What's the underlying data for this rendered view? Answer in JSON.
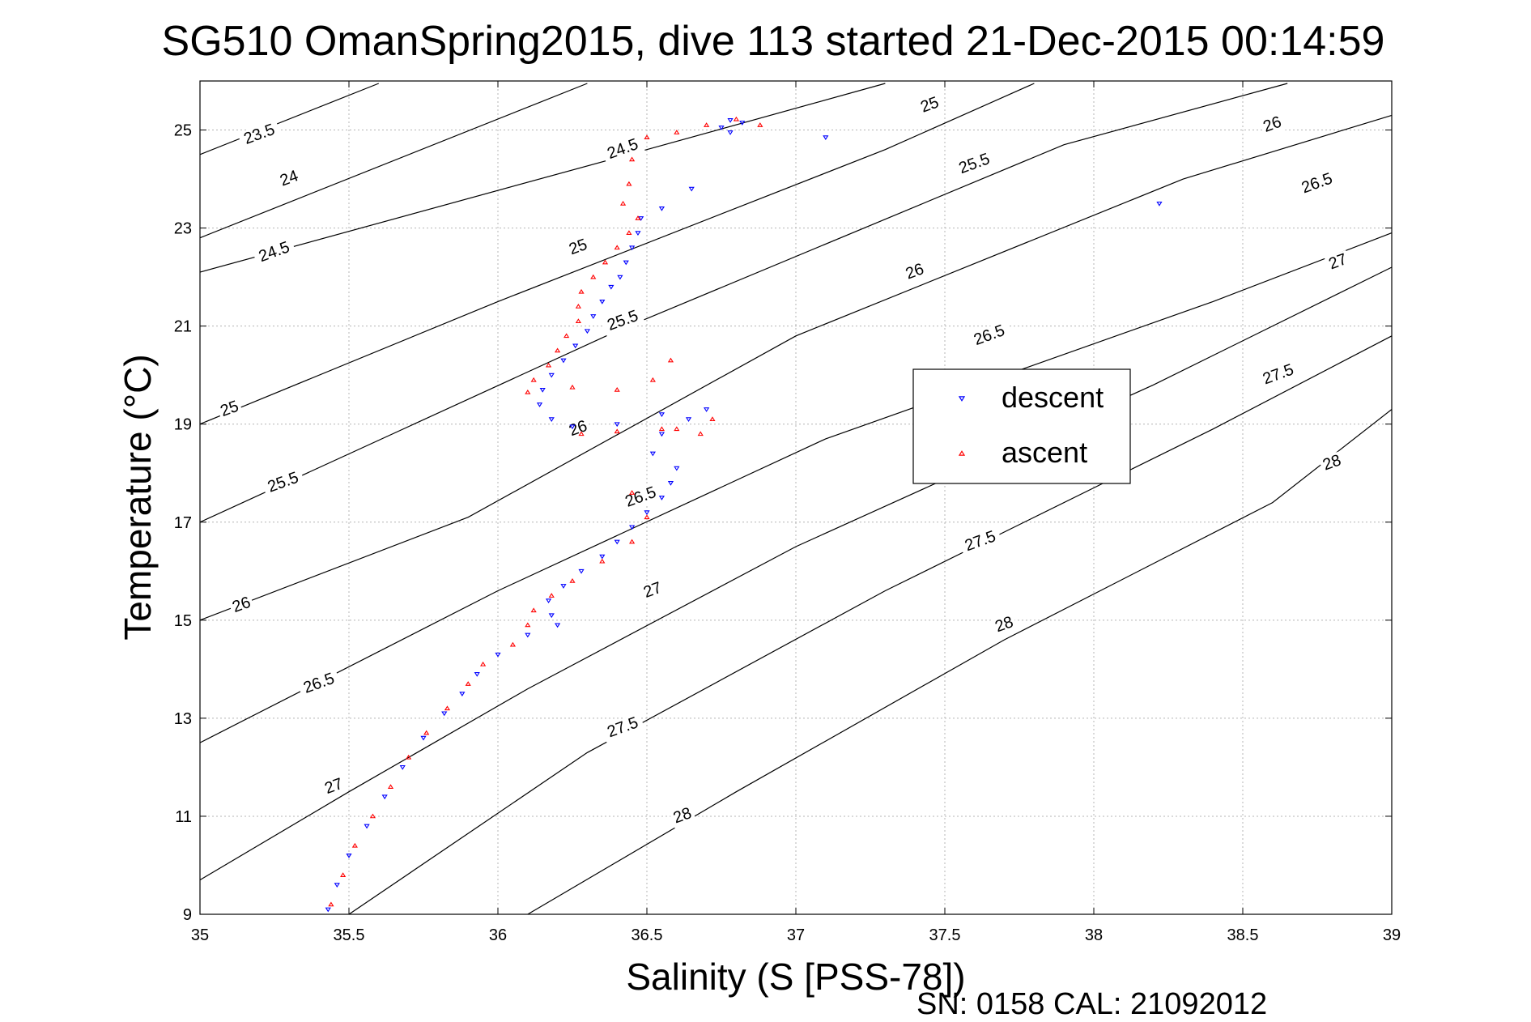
{
  "chart_data": {
    "type": "scatter",
    "title": "SG510 OmanSpring2015, dive 113 started 21-Dec-2015 00:14:59",
    "xlabel": "Salinity (S [PSS-78])",
    "ylabel": "Temperature (°C)",
    "xlim": [
      35,
      39
    ],
    "ylim": [
      9,
      26
    ],
    "xticks": [
      35,
      35.5,
      36,
      36.5,
      37,
      37.5,
      38,
      38.5,
      39
    ],
    "xtick_labels": [
      "35",
      "35.5",
      "36",
      "36.5",
      "37",
      "37.5",
      "38",
      "38.5",
      "39"
    ],
    "yticks": [
      9,
      11,
      13,
      15,
      17,
      19,
      21,
      23,
      25
    ],
    "ytick_labels": [
      "9",
      "11",
      "13",
      "15",
      "17",
      "19",
      "21",
      "23",
      "25"
    ],
    "grid": true,
    "legend_position": "right",
    "footer": "SN: 0158  CAL: 21092012",
    "density_contours": [
      {
        "label": "23.5",
        "label_at": [
          35.2,
          24.9
        ],
        "points": [
          [
            35.0,
            24.5
          ],
          [
            35.6,
            25.95
          ]
        ]
      },
      {
        "label": "24",
        "label_at": [
          35.3,
          24.0
        ],
        "points": [
          [
            35.0,
            22.8
          ],
          [
            36.3,
            25.95
          ]
        ]
      },
      {
        "label": "24.5",
        "label_at": [
          35.25,
          22.5
        ],
        "points": [
          [
            35.0,
            22.1
          ],
          [
            36.5,
            24.6
          ],
          [
            37.3,
            25.95
          ]
        ]
      },
      {
        "label": "24.5",
        "label_at": [
          36.42,
          24.6
        ],
        "points": []
      },
      {
        "label": "25",
        "label_at": [
          35.1,
          19.3
        ],
        "points": [
          [
            35.0,
            19.0
          ],
          [
            36.0,
            21.5
          ],
          [
            37.3,
            24.6
          ],
          [
            37.8,
            25.95
          ]
        ]
      },
      {
        "label": "25",
        "label_at": [
          36.27,
          22.6
        ],
        "points": []
      },
      {
        "label": "25",
        "label_at": [
          37.45,
          25.5
        ],
        "points": []
      },
      {
        "label": "25.5",
        "label_at": [
          35.28,
          17.8
        ],
        "points": [
          [
            35.0,
            17.0
          ],
          [
            36.4,
            20.9
          ],
          [
            37.9,
            24.7
          ],
          [
            38.65,
            25.95
          ]
        ]
      },
      {
        "label": "25.5",
        "label_at": [
          36.42,
          21.1
        ],
        "points": []
      },
      {
        "label": "25.5",
        "label_at": [
          37.6,
          24.3
        ],
        "points": []
      },
      {
        "label": "26",
        "label_at": [
          35.14,
          15.3
        ],
        "points": [
          [
            35.0,
            15.0
          ],
          [
            35.9,
            17.1
          ],
          [
            37.0,
            20.8
          ],
          [
            38.3,
            24.0
          ],
          [
            39.0,
            25.3
          ]
        ]
      },
      {
        "label": "26",
        "label_at": [
          36.27,
          18.9
        ],
        "points": []
      },
      {
        "label": "26",
        "label_at": [
          37.4,
          22.1
        ],
        "points": []
      },
      {
        "label": "26",
        "label_at": [
          38.6,
          25.1
        ],
        "points": []
      },
      {
        "label": "26.5",
        "label_at": [
          35.4,
          13.7
        ],
        "points": [
          [
            35.0,
            12.5
          ],
          [
            36.0,
            15.6
          ],
          [
            37.1,
            18.7
          ],
          [
            38.4,
            21.5
          ],
          [
            39.0,
            22.9
          ]
        ]
      },
      {
        "label": "26.5",
        "label_at": [
          36.48,
          17.5
        ],
        "points": []
      },
      {
        "label": "26.5",
        "label_at": [
          37.65,
          20.8
        ],
        "points": []
      },
      {
        "label": "26.5",
        "label_at": [
          38.75,
          23.9
        ],
        "points": []
      },
      {
        "label": "27",
        "label_at": [
          35.45,
          11.6
        ],
        "points": [
          [
            35.0,
            9.7
          ],
          [
            35.5,
            11.5
          ],
          [
            36.1,
            13.6
          ],
          [
            37.0,
            16.5
          ],
          [
            38.2,
            19.8
          ],
          [
            39.0,
            22.2
          ]
        ]
      },
      {
        "label": "27",
        "label_at": [
          36.52,
          15.6
        ],
        "points": []
      },
      {
        "label": "27",
        "label_at": [
          38.82,
          22.3
        ],
        "points": []
      },
      {
        "label": "27.5",
        "label_at": [
          36.42,
          12.8
        ],
        "points": [
          [
            35.5,
            9.0
          ],
          [
            36.3,
            12.3
          ],
          [
            37.3,
            15.6
          ],
          [
            38.4,
            18.9
          ],
          [
            39.0,
            20.8
          ]
        ]
      },
      {
        "label": "27.5",
        "label_at": [
          37.62,
          16.6
        ],
        "points": []
      },
      {
        "label": "27.5",
        "label_at": [
          38.62,
          20.0
        ],
        "points": []
      },
      {
        "label": "28",
        "label_at": [
          36.62,
          11.0
        ],
        "points": [
          [
            36.1,
            9.0
          ],
          [
            36.8,
            11.5
          ],
          [
            37.7,
            14.6
          ],
          [
            38.6,
            17.4
          ],
          [
            39.0,
            19.3
          ]
        ]
      },
      {
        "label": "28",
        "label_at": [
          37.7,
          14.9
        ],
        "points": []
      },
      {
        "label": "28",
        "label_at": [
          38.8,
          18.2
        ],
        "points": []
      }
    ],
    "series": [
      {
        "name": "descent",
        "color": "#0000ff",
        "marker": "triangle-down",
        "points": [
          [
            36.82,
            25.15
          ],
          [
            36.78,
            25.2
          ],
          [
            36.75,
            25.05
          ],
          [
            36.78,
            24.95
          ],
          [
            37.1,
            24.85
          ],
          [
            36.65,
            23.8
          ],
          [
            36.55,
            23.4
          ],
          [
            36.48,
            23.2
          ],
          [
            36.47,
            22.9
          ],
          [
            36.45,
            22.6
          ],
          [
            36.43,
            22.3
          ],
          [
            36.41,
            22.0
          ],
          [
            36.38,
            21.8
          ],
          [
            36.35,
            21.5
          ],
          [
            36.32,
            21.2
          ],
          [
            36.3,
            20.9
          ],
          [
            36.26,
            20.6
          ],
          [
            36.22,
            20.3
          ],
          [
            36.18,
            20.0
          ],
          [
            36.15,
            19.7
          ],
          [
            36.14,
            19.4
          ],
          [
            36.18,
            19.1
          ],
          [
            36.25,
            18.95
          ],
          [
            36.4,
            19.0
          ],
          [
            36.55,
            19.2
          ],
          [
            36.7,
            19.3
          ],
          [
            36.64,
            19.1
          ],
          [
            36.55,
            18.8
          ],
          [
            36.52,
            18.4
          ],
          [
            36.6,
            18.1
          ],
          [
            36.58,
            17.8
          ],
          [
            36.55,
            17.5
          ],
          [
            36.5,
            17.2
          ],
          [
            36.45,
            16.9
          ],
          [
            36.4,
            16.6
          ],
          [
            36.35,
            16.3
          ],
          [
            36.28,
            16.0
          ],
          [
            36.22,
            15.7
          ],
          [
            36.17,
            15.4
          ],
          [
            36.18,
            15.1
          ],
          [
            36.2,
            14.9
          ],
          [
            36.1,
            14.7
          ],
          [
            36.0,
            14.3
          ],
          [
            35.93,
            13.9
          ],
          [
            35.88,
            13.5
          ],
          [
            35.82,
            13.1
          ],
          [
            35.75,
            12.6
          ],
          [
            35.68,
            12.0
          ],
          [
            35.62,
            11.4
          ],
          [
            35.56,
            10.8
          ],
          [
            35.5,
            10.2
          ],
          [
            35.46,
            9.6
          ],
          [
            35.43,
            9.1
          ],
          [
            38.22,
            23.5
          ]
        ]
      },
      {
        "name": "ascent",
        "color": "#ff0000",
        "marker": "triangle-up",
        "points": [
          [
            36.88,
            25.1
          ],
          [
            36.8,
            25.22
          ],
          [
            36.7,
            25.1
          ],
          [
            36.6,
            24.95
          ],
          [
            36.5,
            24.85
          ],
          [
            36.45,
            24.4
          ],
          [
            36.44,
            23.9
          ],
          [
            36.42,
            23.5
          ],
          [
            36.47,
            23.2
          ],
          [
            36.44,
            22.9
          ],
          [
            36.4,
            22.6
          ],
          [
            36.36,
            22.3
          ],
          [
            36.32,
            22.0
          ],
          [
            36.28,
            21.7
          ],
          [
            36.27,
            21.4
          ],
          [
            36.27,
            21.1
          ],
          [
            36.23,
            20.8
          ],
          [
            36.2,
            20.5
          ],
          [
            36.17,
            20.2
          ],
          [
            36.12,
            19.9
          ],
          [
            36.1,
            19.65
          ],
          [
            36.25,
            19.75
          ],
          [
            36.4,
            19.7
          ],
          [
            36.52,
            19.9
          ],
          [
            36.58,
            20.3
          ],
          [
            36.55,
            18.9
          ],
          [
            36.68,
            18.8
          ],
          [
            36.72,
            19.1
          ],
          [
            36.6,
            18.9
          ],
          [
            36.4,
            18.85
          ],
          [
            36.28,
            18.8
          ],
          [
            36.45,
            17.6
          ],
          [
            36.5,
            17.1
          ],
          [
            36.45,
            16.6
          ],
          [
            36.35,
            16.2
          ],
          [
            36.25,
            15.8
          ],
          [
            36.18,
            15.5
          ],
          [
            36.12,
            15.2
          ],
          [
            36.1,
            14.9
          ],
          [
            36.05,
            14.5
          ],
          [
            35.95,
            14.1
          ],
          [
            35.9,
            13.7
          ],
          [
            35.83,
            13.2
          ],
          [
            35.76,
            12.7
          ],
          [
            35.7,
            12.2
          ],
          [
            35.64,
            11.6
          ],
          [
            35.58,
            11.0
          ],
          [
            35.52,
            10.4
          ],
          [
            35.48,
            9.8
          ],
          [
            35.44,
            9.2
          ]
        ]
      }
    ]
  }
}
